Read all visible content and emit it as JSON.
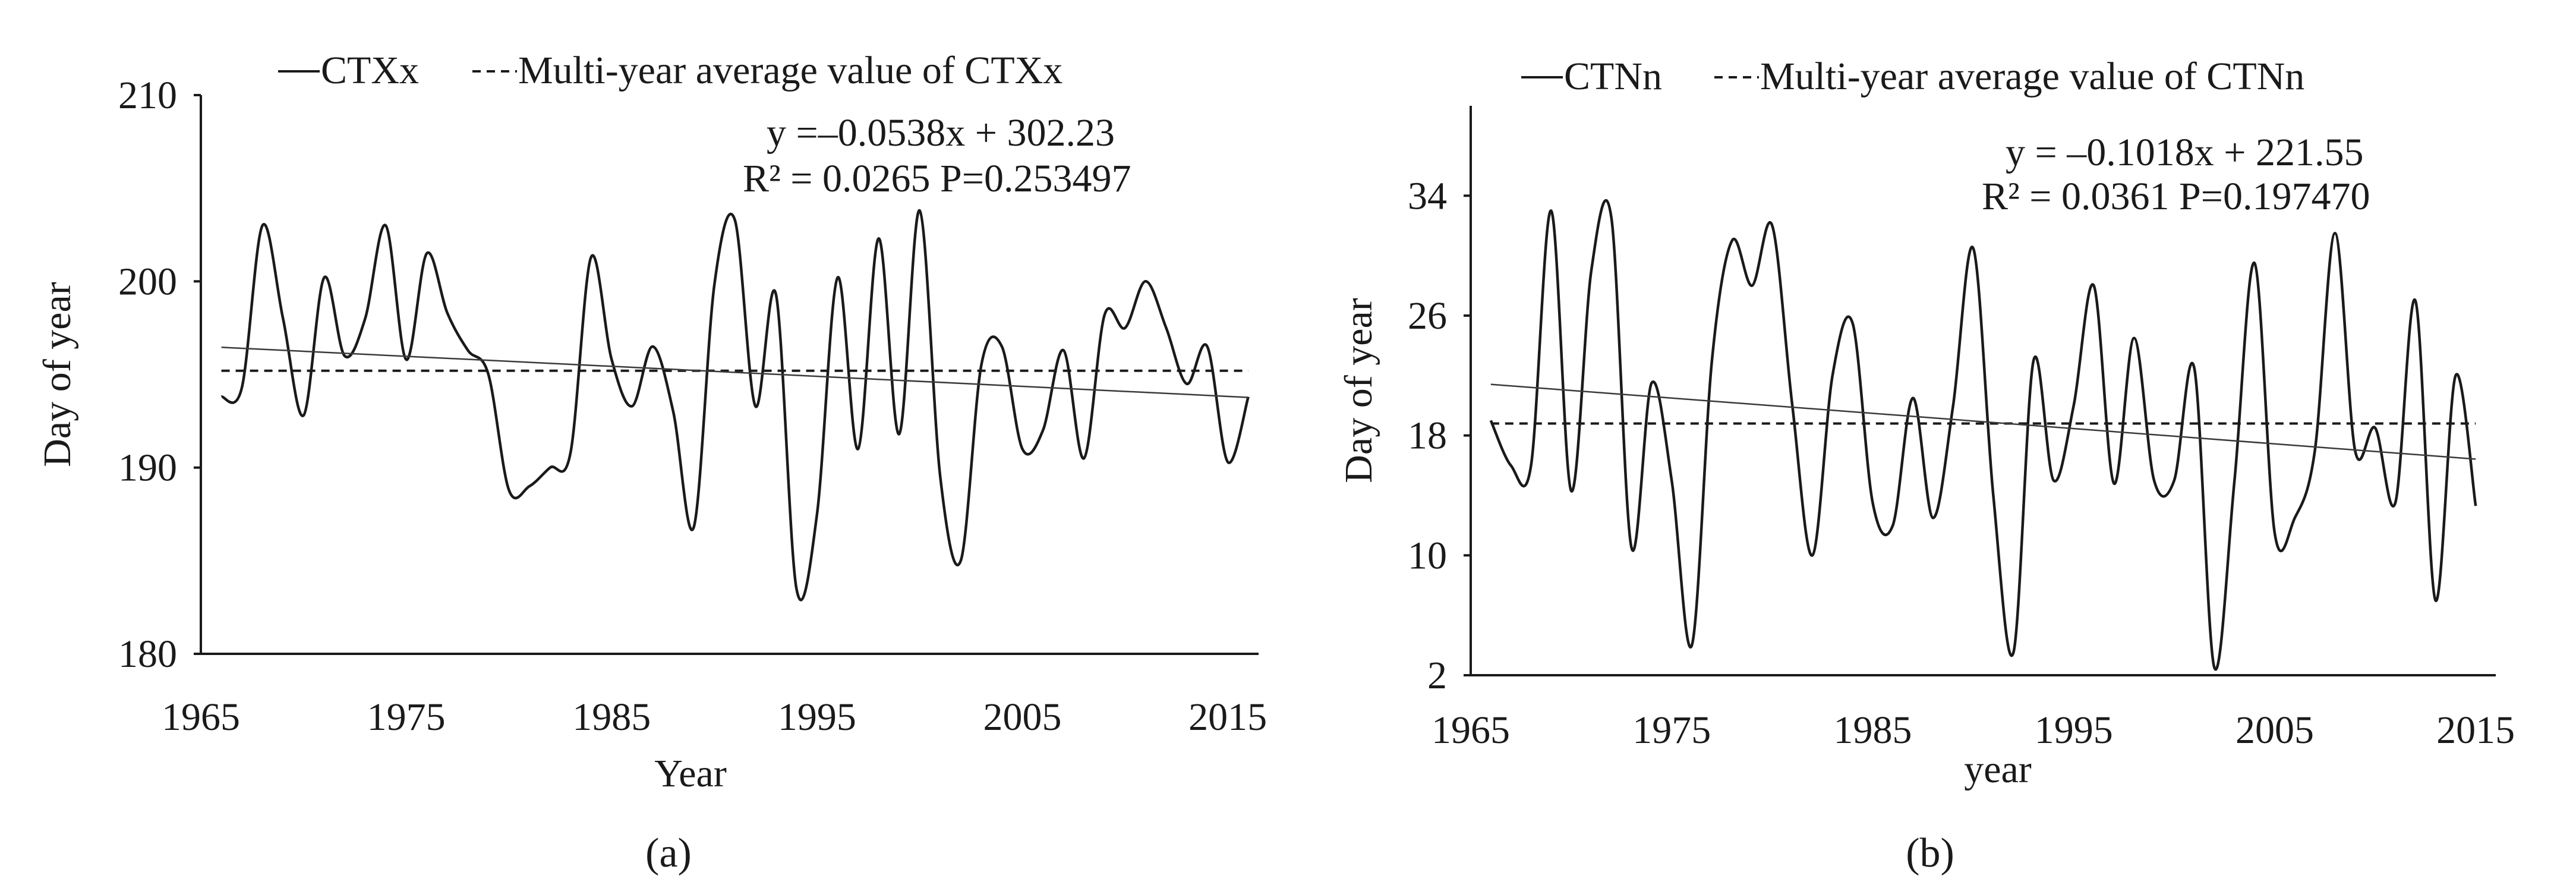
{
  "chart_data": [
    {
      "type": "line",
      "panel_label": "(a)",
      "legend_position": "top",
      "legend": [
        {
          "label": "—CTXx",
          "style": "solid"
        },
        {
          "label": "---Multi-year average value of CTXx",
          "style": "dashed"
        }
      ],
      "equation_line1": "y =–0.0538x + 302.23",
      "equation_line2": "R² = 0.0265 P=0.253497",
      "xlabel": "Year",
      "ylabel": "Day of  year",
      "xlim": [
        1965,
        2016.5
      ],
      "ylim": [
        180,
        210
      ],
      "xticks": [
        1965,
        1975,
        1985,
        1995,
        2005,
        2015
      ],
      "yticks": [
        180,
        190,
        200,
        210
      ],
      "grid": false,
      "series": [
        {
          "name": "CTXx",
          "style": "solid",
          "x": [
            1966,
            1967,
            1968,
            1969,
            1970,
            1971,
            1972,
            1973,
            1974,
            1975,
            1976,
            1977,
            1978,
            1979,
            1980,
            1981,
            1982,
            1983,
            1984,
            1985,
            1986,
            1987,
            1988,
            1989,
            1990,
            1991,
            1992,
            1993,
            1994,
            1995,
            1996,
            1997,
            1998,
            1999,
            2000,
            2001,
            2002,
            2003,
            2004,
            2005,
            2006,
            2007,
            2008,
            2009,
            2010,
            2011,
            2012,
            2013,
            2014,
            2015,
            2016
          ],
          "values": [
            193.8,
            194.3,
            203.0,
            198.0,
            192.8,
            200.2,
            196.0,
            198.0,
            203.0,
            195.8,
            201.5,
            198.3,
            196.3,
            195.0,
            188.8,
            189.0,
            190.0,
            190.8,
            201.3,
            195.8,
            193.3,
            196.5,
            193.0,
            186.8,
            199.8,
            203.3,
            193.3,
            199.3,
            183.5,
            187.5,
            200.2,
            191.0,
            202.3,
            191.8,
            203.8,
            189.5,
            185.0,
            195.5,
            196.5,
            191.0,
            192.0,
            196.3,
            190.5,
            198.2,
            197.5,
            200.0,
            197.5,
            194.5,
            196.5,
            190.3,
            193.8
          ]
        },
        {
          "name": "Multi-year average value of CTXx",
          "style": "dashed",
          "x": [
            1966,
            2016
          ],
          "values": [
            195.2,
            195.2
          ]
        },
        {
          "name": "Linear trend",
          "style": "thin",
          "slope": -0.0538,
          "intercept": 302.23,
          "x": [
            1966,
            2016
          ]
        }
      ]
    },
    {
      "type": "line",
      "panel_label": "(b)",
      "legend_position": "top",
      "legend": [
        {
          "label": "—CTNn",
          "style": "solid"
        },
        {
          "label": "---Multi-year average value of CTNn",
          "style": "dashed"
        }
      ],
      "equation_line1": "y = –0.1018x + 221.55",
      "equation_line2": "R² = 0.0361 P=0.197470",
      "xlabel": "year",
      "ylabel": "Day of  year",
      "xlim": [
        1965,
        2016
      ],
      "ylim": [
        2,
        40
      ],
      "xticks": [
        1965,
        1975,
        1985,
        1995,
        2005,
        2015
      ],
      "yticks": [
        2,
        10,
        18,
        26,
        34
      ],
      "grid": false,
      "series": [
        {
          "name": "CTNn",
          "style": "solid",
          "x": [
            1966,
            1967,
            1968,
            1969,
            1970,
            1971,
            1972,
            1973,
            1974,
            1975,
            1976,
            1977,
            1978,
            1979,
            1980,
            1981,
            1982,
            1983,
            1984,
            1985,
            1986,
            1987,
            1988,
            1989,
            1990,
            1991,
            1992,
            1993,
            1994,
            1995,
            1996,
            1997,
            1998,
            1999,
            2000,
            2001,
            2002,
            2003,
            2004,
            2005,
            2006,
            2007,
            2008,
            2009,
            2010,
            2011,
            2012,
            2013,
            2014,
            2015
          ],
          "values": [
            19.0,
            16.0,
            16.0,
            33.0,
            14.3,
            29.0,
            32.5,
            10.5,
            21.5,
            15.0,
            4.0,
            23.0,
            31.0,
            28.0,
            32.0,
            20.0,
            10.0,
            22.0,
            25.5,
            13.5,
            12.0,
            20.5,
            12.5,
            20.0,
            30.5,
            14.0,
            3.5,
            23.0,
            15.0,
            20.0,
            28.0,
            14.8,
            24.5,
            15.0,
            15.0,
            22.5,
            2.5,
            15.0,
            29.5,
            11.5,
            12.5,
            17.0,
            31.5,
            17.0,
            18.5,
            13.5,
            27.0,
            7.0,
            22.0,
            13.3
          ]
        },
        {
          "name": "Multi-year average value of CTNn",
          "style": "dashed",
          "x": [
            1966,
            2015
          ],
          "values": [
            18.8,
            18.8
          ]
        },
        {
          "name": "Linear trend",
          "style": "thin",
          "slope": -0.1018,
          "intercept": 221.55,
          "x": [
            1966,
            2015
          ]
        }
      ]
    }
  ]
}
